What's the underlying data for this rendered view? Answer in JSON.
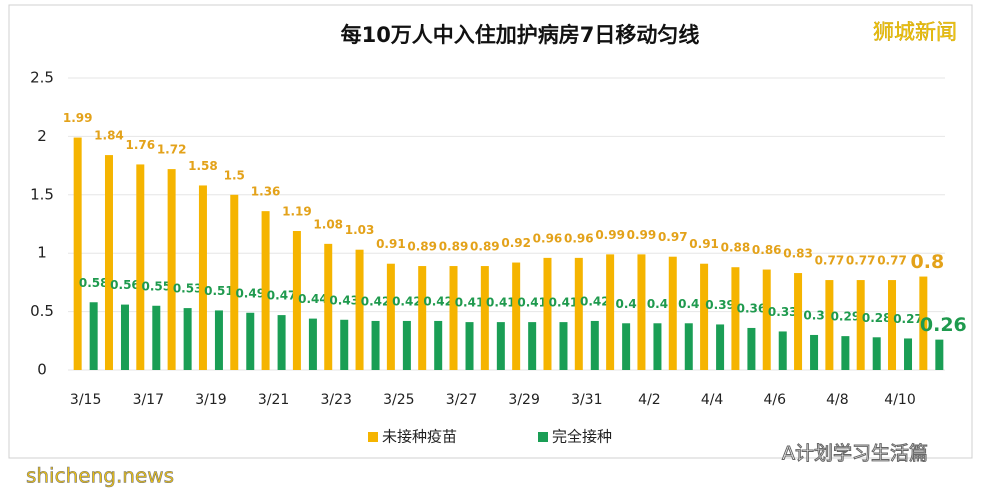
{
  "chart_data": {
    "type": "bar",
    "title": "每10万人中入住加护病房7日移动匀线",
    "categories": [
      "3/15",
      null,
      "3/17",
      null,
      "3/19",
      null,
      "3/21",
      null,
      "3/23",
      null,
      "3/25",
      null,
      "3/27",
      null,
      "3/29",
      null,
      "3/31",
      null,
      "4/2",
      null,
      "4/4",
      null,
      "4/6",
      null,
      "4/8",
      null,
      "4/10",
      null
    ],
    "series": [
      {
        "name": "未接种疫苗",
        "color": "#f5b400",
        "label_color": "#e3a21a",
        "values": [
          1.99,
          1.84,
          1.76,
          1.72,
          1.58,
          1.5,
          1.36,
          1.19,
          1.08,
          1.03,
          0.91,
          0.89,
          0.89,
          0.89,
          0.92,
          0.96,
          0.96,
          0.99,
          0.99,
          0.97,
          0.91,
          0.88,
          0.86,
          0.83,
          0.77,
          0.77,
          0.77,
          0.8
        ]
      },
      {
        "name": "完全接种",
        "color": "#1a9e55",
        "label_color": "#1f9a4e",
        "values": [
          0.58,
          0.56,
          0.55,
          0.53,
          0.51,
          0.49,
          0.47,
          0.44,
          0.43,
          0.42,
          0.42,
          0.42,
          0.41,
          0.41,
          0.41,
          0.41,
          0.42,
          0.4,
          0.4,
          0.4,
          0.39,
          0.36,
          0.33,
          0.3,
          0.29,
          0.28,
          0.27,
          0.26
        ]
      }
    ],
    "ylim": [
      0,
      2.5
    ],
    "yticks": [
      0,
      0.5,
      1,
      1.5,
      2,
      2.5
    ],
    "grid": true,
    "legend": "bottom"
  },
  "watermarks": {
    "top_right": "狮城新闻",
    "bottom_right": "A计划学习生活篇",
    "bottom_left": "shicheng.news"
  }
}
